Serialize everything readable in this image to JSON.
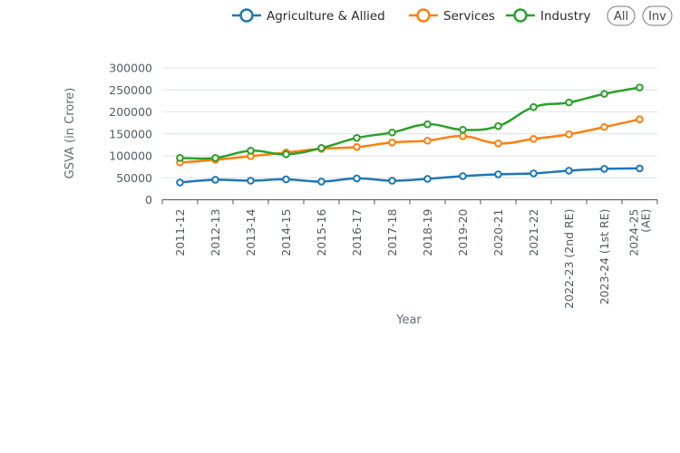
{
  "chart_data": {
    "type": "line",
    "title": "",
    "xlabel": "Year",
    "ylabel": "GSVA (in Crore)",
    "ylim": [
      0,
      300000
    ],
    "yticks": [
      0,
      50000,
      100000,
      150000,
      200000,
      250000,
      300000
    ],
    "ytick_labels": [
      "0",
      "50000",
      "100000",
      "150000",
      "200000",
      "250000",
      "300000"
    ],
    "grid": true,
    "legend_position": "top-right",
    "categories": [
      [
        "2011-12"
      ],
      [
        "2012-13"
      ],
      [
        "2013-14"
      ],
      [
        "2014-15"
      ],
      [
        "2015-16"
      ],
      [
        "2016-17"
      ],
      [
        "2017-18"
      ],
      [
        "2018-19"
      ],
      [
        "2019-20"
      ],
      [
        "2020-21"
      ],
      [
        "2021-22"
      ],
      [
        "2022-23 (2nd RE)"
      ],
      [
        "2023-24 (1st RE)"
      ],
      [
        "2024-25",
        "(AE)"
      ]
    ],
    "series": [
      {
        "name": "Agriculture & Allied",
        "color": "#1f77b4",
        "values": [
          39300,
          45500,
          43400,
          46500,
          41400,
          48600,
          43400,
          47600,
          53800,
          57900,
          60000,
          66200,
          70300,
          71400
        ]
      },
      {
        "name": "Services",
        "color": "#ff7f0e",
        "values": [
          84800,
          91000,
          99300,
          107600,
          115900,
          120000,
          130300,
          134500,
          144800,
          128300,
          138600,
          149000,
          165500,
          183100
        ]
      },
      {
        "name": "Industry",
        "color": "#2ca02c",
        "values": [
          95200,
          95200,
          111700,
          103400,
          117900,
          140700,
          153100,
          171700,
          159300,
          167600,
          211000,
          221400,
          241000,
          255500
        ]
      }
    ]
  },
  "controls": {
    "all_label": "All",
    "inv_label": "Inv"
  }
}
